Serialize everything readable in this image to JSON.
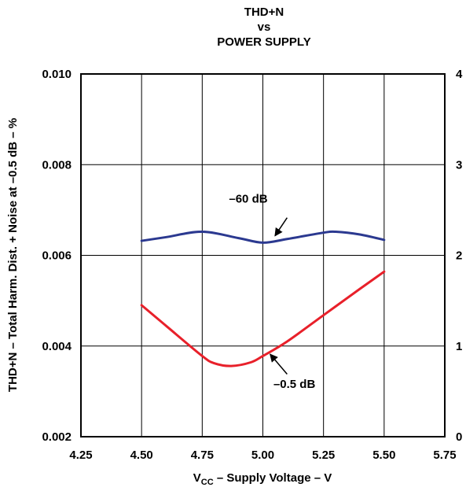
{
  "chart_data": {
    "type": "line",
    "title": [
      "THD+N",
      "vs",
      "POWER SUPPLY"
    ],
    "xlabel": {
      "prefix": "V",
      "subscript": "CC",
      "suffix": " – Supply Voltage – V"
    },
    "ylabel": "THD+N – Total Harm. Dist. + Noise at –0.5 dB – %",
    "xlim": [
      4.25,
      5.75
    ],
    "ylim": [
      0.002,
      0.01
    ],
    "y2lim": [
      0,
      4
    ],
    "x_ticks": [
      4.25,
      4.5,
      4.75,
      5.0,
      5.25,
      5.5,
      5.75
    ],
    "x_tick_labels": [
      "4.25",
      "4.50",
      "4.75",
      "5.00",
      "5.25",
      "5.50",
      "5.75"
    ],
    "y_ticks": [
      0.002,
      0.004,
      0.006,
      0.008,
      0.01
    ],
    "y_tick_labels": [
      "0.002",
      "0.004",
      "0.006",
      "0.008",
      "0.010"
    ],
    "y2_ticks": [
      0,
      1,
      2,
      3,
      4
    ],
    "y2_tick_labels": [
      "0",
      "1",
      "2",
      "3",
      "4"
    ],
    "grid": true,
    "series": [
      {
        "name": "–60 dB",
        "color": "#2b3990",
        "axis": "y",
        "x": [
          4.5,
          4.6,
          4.75,
          4.9,
          5.0,
          5.1,
          5.25,
          5.3,
          5.4,
          5.5
        ],
        "y": [
          0.00632,
          0.0064,
          0.00652,
          0.00638,
          0.00628,
          0.00636,
          0.0065,
          0.00652,
          0.00646,
          0.00634
        ]
      },
      {
        "name": "–0.5 dB",
        "color": "#e8202a",
        "axis": "y",
        "x": [
          4.5,
          4.6,
          4.75,
          4.8,
          4.87,
          4.95,
          5.0,
          5.1,
          5.25,
          5.4,
          5.5
        ],
        "y": [
          0.0049,
          0.00445,
          0.00378,
          0.00362,
          0.00356,
          0.00364,
          0.00378,
          0.0041,
          0.00468,
          0.00526,
          0.00564
        ]
      }
    ],
    "annotations": [
      {
        "text": "–60 dB",
        "x": 4.94,
        "y": 0.00716,
        "arrow_from": [
          5.1,
          0.00683
        ],
        "arrow_to": [
          5.05,
          0.00643
        ]
      },
      {
        "text": "–0.5 dB",
        "x": 5.13,
        "y": 0.00308,
        "arrow_from": [
          5.1,
          0.00338
        ],
        "arrow_to": [
          5.03,
          0.00382
        ]
      }
    ]
  }
}
